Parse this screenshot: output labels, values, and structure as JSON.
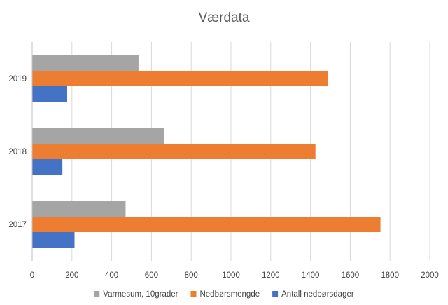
{
  "chart_data": {
    "type": "bar",
    "orientation": "horizontal",
    "title": "Værdata",
    "categories": [
      "2017",
      "2018",
      "2019"
    ],
    "series": [
      {
        "name": "Antall nedbørsdager",
        "color": "#4472C4",
        "values": [
          213,
          152,
          176
        ]
      },
      {
        "name": "Nedbørsmengde",
        "color": "#ED7D31",
        "values": [
          1752,
          1425,
          1487
        ]
      },
      {
        "name": "Varmesum, 10grader",
        "color": "#A5A5A5",
        "values": [
          470,
          665,
          535
        ]
      }
    ],
    "legend_order": [
      2,
      1,
      0
    ],
    "xlim": [
      0,
      2000
    ],
    "x_ticks": [
      "0",
      "200",
      "400",
      "600",
      "800",
      "1000",
      "1200",
      "1400",
      "1600",
      "1800",
      "2000"
    ],
    "grid": true,
    "legend_position": "bottom",
    "gridline_color": "#D9D9D9",
    "axis_color": "#BFBFBF"
  }
}
